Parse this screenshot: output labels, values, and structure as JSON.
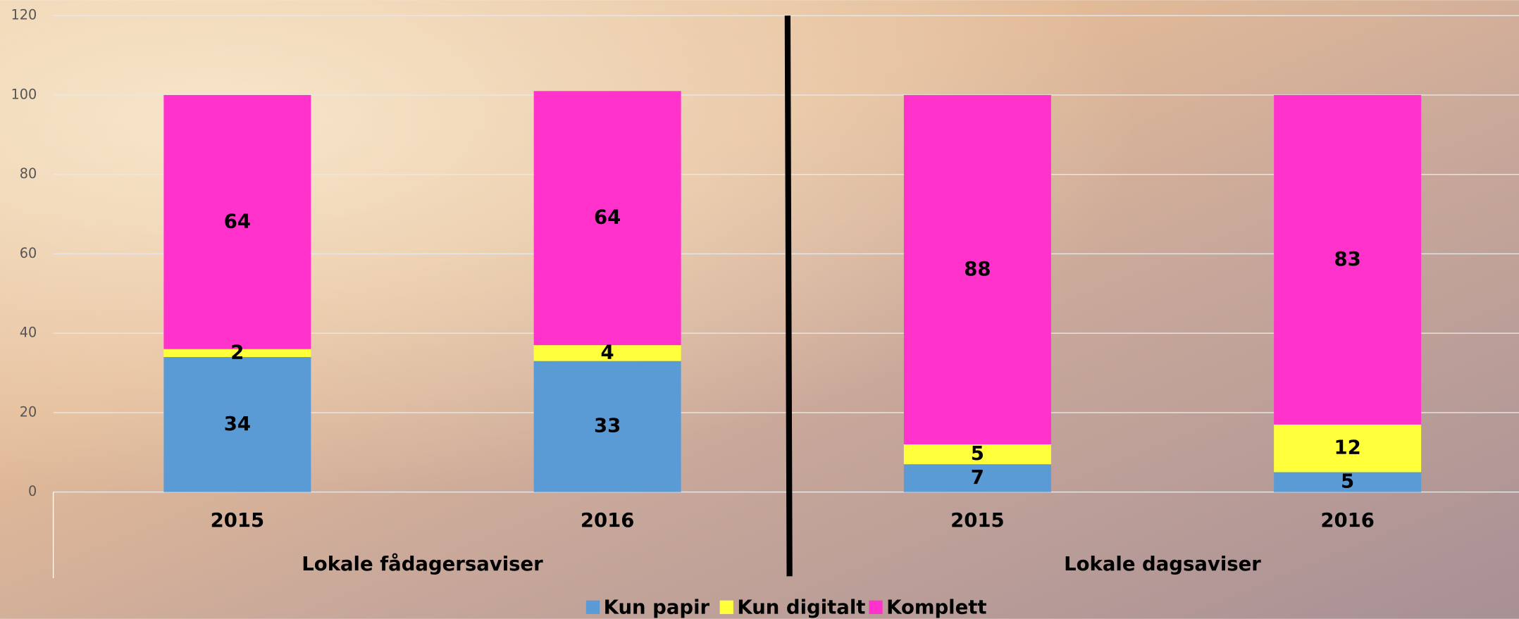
{
  "chart_data": {
    "type": "stacked-bar",
    "categories": [
      "2015",
      "2016",
      "2015",
      "2016"
    ],
    "groups": [
      "Lokale fådagersaviser",
      "Lokale dagsaviser"
    ],
    "series": [
      {
        "name": "Kun papir",
        "color": "#5b9bd5",
        "values": [
          34,
          33,
          7,
          5
        ]
      },
      {
        "name": "Kun digitalt",
        "color": "#ffff3c",
        "values": [
          2,
          4,
          5,
          12
        ]
      },
      {
        "name": "Komplett",
        "color": "#ff33cc",
        "values": [
          64,
          64,
          88,
          83
        ]
      }
    ],
    "ylim": [
      0,
      120
    ],
    "yticks": [
      0,
      20,
      40,
      60,
      80,
      100,
      120
    ],
    "grid": true,
    "legend": "bottom"
  }
}
